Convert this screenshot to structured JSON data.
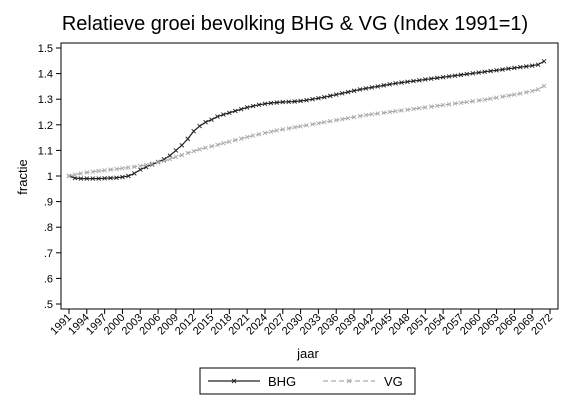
{
  "chart_data": {
    "type": "line",
    "title": "Relatieve groei bevolking BHG & VG (Index 1991=1)",
    "xlabel": "jaar",
    "ylabel": "fractie",
    "xlim": [
      1991,
      2072
    ],
    "ylim": [
      0.5,
      1.5
    ],
    "x_ticks": [
      "1991",
      "1994",
      "1997",
      "2000",
      "2003",
      "2006",
      "2009",
      "2012",
      "2015",
      "2018",
      "2021",
      "2024",
      "2027",
      "2030",
      "2033",
      "2036",
      "2039",
      "2042",
      "2045",
      "2048",
      "2051",
      "2054",
      "2057",
      "2060",
      "2063",
      "2066",
      "2069",
      "2072"
    ],
    "y_ticks": [
      {
        "value": 0.5,
        "label": ".5"
      },
      {
        "value": 0.6,
        "label": ".6"
      },
      {
        "value": 0.7,
        "label": ".7"
      },
      {
        "value": 0.8,
        "label": ".8"
      },
      {
        "value": 0.9,
        "label": ".9"
      },
      {
        "value": 1.0,
        "label": "1"
      },
      {
        "value": 1.1,
        "label": "1.1"
      },
      {
        "value": 1.2,
        "label": "1.2"
      },
      {
        "value": 1.3,
        "label": "1.3"
      },
      {
        "value": 1.4,
        "label": "1.4"
      },
      {
        "value": 1.5,
        "label": "1.5"
      }
    ],
    "grid": false,
    "legend_position": "bottom",
    "series": [
      {
        "name": "BHG",
        "color": "#222222",
        "dash": false,
        "x": [
          1991,
          1992,
          1993,
          1994,
          1995,
          1996,
          1997,
          1998,
          1999,
          2000,
          2001,
          2002,
          2003,
          2004,
          2005,
          2006,
          2007,
          2008,
          2009,
          2010,
          2011,
          2012,
          2013,
          2014,
          2015,
          2016,
          2017,
          2018,
          2019,
          2020,
          2021,
          2022,
          2023,
          2024,
          2025,
          2026,
          2027,
          2028,
          2029,
          2030,
          2031,
          2032,
          2033,
          2034,
          2035,
          2036,
          2037,
          2038,
          2039,
          2040,
          2041,
          2042,
          2043,
          2044,
          2045,
          2046,
          2047,
          2048,
          2049,
          2050,
          2051,
          2052,
          2053,
          2054,
          2055,
          2056,
          2057,
          2058,
          2059,
          2060,
          2061,
          2062,
          2063,
          2064,
          2065,
          2066,
          2067,
          2068,
          2069,
          2070,
          2071
        ],
        "y": [
          1.0,
          0.992,
          0.99,
          0.99,
          0.99,
          0.99,
          0.991,
          0.992,
          0.993,
          0.996,
          1.0,
          1.01,
          1.025,
          1.035,
          1.045,
          1.055,
          1.065,
          1.08,
          1.1,
          1.12,
          1.145,
          1.175,
          1.195,
          1.21,
          1.22,
          1.232,
          1.24,
          1.247,
          1.254,
          1.261,
          1.268,
          1.273,
          1.278,
          1.282,
          1.285,
          1.287,
          1.289,
          1.29,
          1.291,
          1.293,
          1.296,
          1.3,
          1.304,
          1.308,
          1.313,
          1.318,
          1.323,
          1.328,
          1.333,
          1.338,
          1.342,
          1.346,
          1.35,
          1.354,
          1.358,
          1.362,
          1.365,
          1.368,
          1.371,
          1.374,
          1.377,
          1.38,
          1.383,
          1.386,
          1.389,
          1.392,
          1.395,
          1.398,
          1.401,
          1.404,
          1.407,
          1.41,
          1.413,
          1.416,
          1.419,
          1.422,
          1.425,
          1.428,
          1.431,
          1.435,
          1.448
        ]
      },
      {
        "name": "VG",
        "color": "#aaaaaa",
        "dash": true,
        "x": [
          1991,
          1992,
          1993,
          1994,
          1995,
          1996,
          1997,
          1998,
          1999,
          2000,
          2001,
          2002,
          2003,
          2004,
          2005,
          2006,
          2007,
          2008,
          2009,
          2010,
          2011,
          2012,
          2013,
          2014,
          2015,
          2016,
          2017,
          2018,
          2019,
          2020,
          2021,
          2022,
          2023,
          2024,
          2025,
          2026,
          2027,
          2028,
          2029,
          2030,
          2031,
          2032,
          2033,
          2034,
          2035,
          2036,
          2037,
          2038,
          2039,
          2040,
          2041,
          2042,
          2043,
          2044,
          2045,
          2046,
          2047,
          2048,
          2049,
          2050,
          2051,
          2052,
          2053,
          2054,
          2055,
          2056,
          2057,
          2058,
          2059,
          2060,
          2061,
          2062,
          2063,
          2064,
          2065,
          2066,
          2067,
          2068,
          2069,
          2070,
          2071
        ],
        "y": [
          1.0,
          1.005,
          1.01,
          1.014,
          1.017,
          1.02,
          1.022,
          1.025,
          1.027,
          1.03,
          1.033,
          1.036,
          1.039,
          1.043,
          1.048,
          1.053,
          1.059,
          1.066,
          1.074,
          1.082,
          1.09,
          1.097,
          1.104,
          1.11,
          1.116,
          1.122,
          1.128,
          1.134,
          1.14,
          1.146,
          1.152,
          1.158,
          1.163,
          1.168,
          1.173,
          1.178,
          1.182,
          1.186,
          1.19,
          1.194,
          1.198,
          1.202,
          1.206,
          1.21,
          1.214,
          1.218,
          1.222,
          1.226,
          1.23,
          1.234,
          1.238,
          1.241,
          1.244,
          1.247,
          1.25,
          1.253,
          1.256,
          1.259,
          1.262,
          1.265,
          1.268,
          1.271,
          1.274,
          1.277,
          1.28,
          1.283,
          1.286,
          1.289,
          1.292,
          1.295,
          1.298,
          1.302,
          1.306,
          1.31,
          1.314,
          1.318,
          1.322,
          1.327,
          1.332,
          1.338,
          1.352
        ]
      }
    ]
  }
}
